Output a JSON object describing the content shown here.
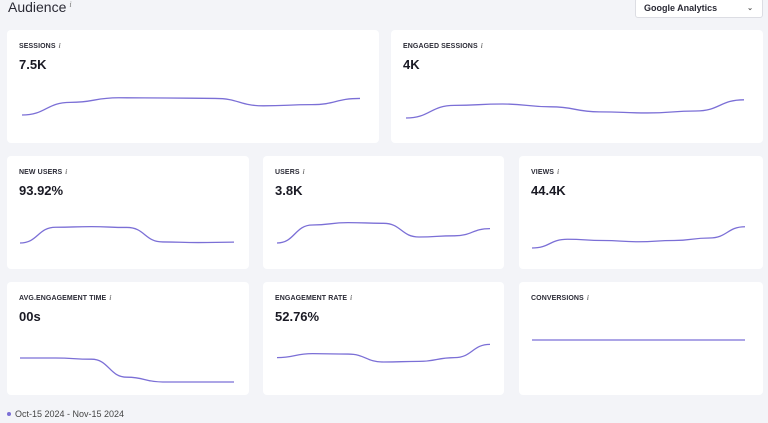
{
  "header": {
    "title": "Audience",
    "info": "i"
  },
  "source_select": {
    "value": "Google Analytics",
    "icon": "chevron-down-icon"
  },
  "accent_color": "#7b6fd6",
  "cards": [
    {
      "id": "sessions",
      "label": "SESSIONS",
      "value": "7.5K",
      "trend": [
        0.0,
        0.55,
        0.75,
        0.74,
        0.72,
        0.4,
        0.45,
        0.72
      ]
    },
    {
      "id": "engaged-sessions",
      "label": "ENGAGED SESSIONS",
      "value": "4K",
      "trend": [
        0.0,
        0.45,
        0.5,
        0.4,
        0.22,
        0.18,
        0.25,
        0.65
      ]
    },
    {
      "id": "new-users",
      "label": "NEW USERS",
      "value": "93.92%",
      "trend": [
        0.0,
        0.75,
        0.78,
        0.74,
        0.05,
        0.02,
        0.04
      ]
    },
    {
      "id": "users",
      "label": "USERS",
      "value": "3.8K",
      "trend": [
        0.0,
        0.75,
        0.85,
        0.82,
        0.25,
        0.3,
        0.6
      ]
    },
    {
      "id": "views",
      "label": "VIEWS",
      "value": "44.4K",
      "trend": [
        0.0,
        0.35,
        0.3,
        0.25,
        0.3,
        0.4,
        0.85
      ]
    },
    {
      "id": "avg-engagement-time",
      "label": "AVG.ENGAGEMENT TIME",
      "value": "00s",
      "trend": [
        1.0,
        1.0,
        0.95,
        0.2,
        0.0,
        0.0,
        0.0
      ]
    },
    {
      "id": "engagement-rate",
      "label": "ENGAGEMENT RATE",
      "value": "52.76%",
      "trend": [
        0.2,
        0.38,
        0.36,
        0.0,
        0.03,
        0.2,
        0.8
      ]
    },
    {
      "id": "conversions",
      "label": "CONVERSIONS",
      "value": "",
      "trend": [
        0.5,
        0.5,
        0.5,
        0.5,
        0.5
      ]
    }
  ],
  "legend": {
    "label": "Oct-15 2024 - Nov-15 2024"
  }
}
